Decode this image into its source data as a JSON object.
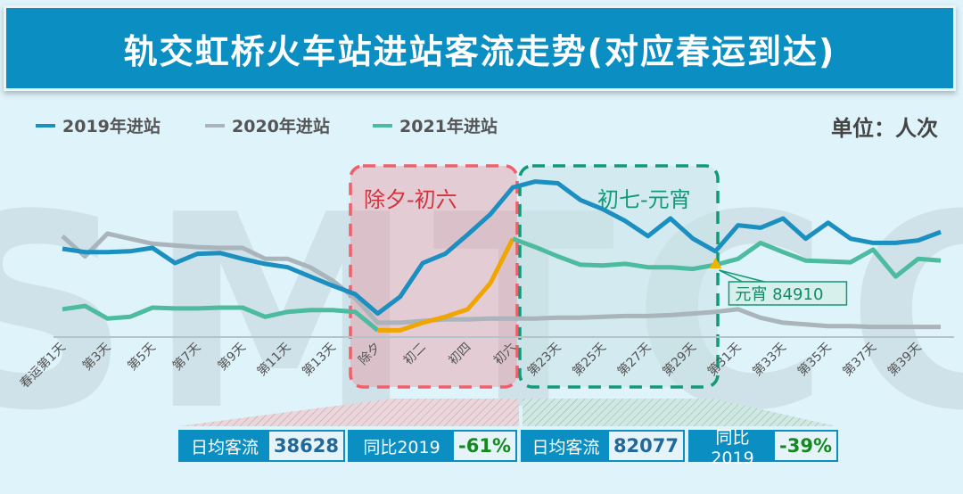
{
  "title": "轨交虹桥火车站进站客流走势(对应春运到达)",
  "unit": "单位：人次",
  "watermark": "SMTCC",
  "chart_data": {
    "type": "line",
    "title": "轨交虹桥火车站进站客流走势(对应春运到达)",
    "xlabel": "",
    "ylabel": "人次",
    "days": 40,
    "x_tick_labels": [
      "春运第1天",
      "第3天",
      "第5天",
      "第7天",
      "第9天",
      "第11天",
      "第13天",
      "除夕",
      "初二",
      "初四",
      "初六",
      "第23天",
      "第25天",
      "第27天",
      "第29天",
      "第31天",
      "第33天",
      "第35天",
      "第37天",
      "第39天"
    ],
    "ylim": [
      0,
      190000
    ],
    "legend_position": "top-left",
    "grid": false,
    "series": [
      {
        "name": "2019年进站",
        "color": "#1a8fc0",
        "values": [
          104000,
          100000,
          100000,
          101000,
          105000,
          87000,
          98000,
          99000,
          92000,
          86000,
          82000,
          71000,
          60000,
          50000,
          27000,
          47000,
          87000,
          98000,
          121000,
          145000,
          177000,
          184000,
          182000,
          162000,
          151000,
          137000,
          119000,
          140000,
          116000,
          101000,
          132000,
          129000,
          140000,
          116000,
          135000,
          116000,
          111000,
          111000,
          114000,
          124000
        ]
      },
      {
        "name": "2020年进站",
        "color": "#a9b4bb",
        "values": [
          119000,
          95000,
          122000,
          116000,
          110000,
          108000,
          106000,
          105000,
          105000,
          92000,
          92000,
          82000,
          66000,
          45000,
          16000,
          16000,
          18000,
          20000,
          20000,
          21000,
          21000,
          21000,
          22000,
          22000,
          23000,
          24000,
          24000,
          25000,
          27000,
          29000,
          32000,
          22000,
          16000,
          14000,
          12000,
          12000,
          11000,
          11000,
          11000,
          11000
        ]
      },
      {
        "name": "2021年进站",
        "color": "#4cbb9f",
        "highlight_color": "#f0a500",
        "values": [
          32000,
          36000,
          21000,
          23000,
          34000,
          33000,
          33000,
          34000,
          34000,
          23000,
          29000,
          31000,
          31000,
          29000,
          7000,
          7000,
          16000,
          23000,
          32000,
          63000,
          116000,
          106000,
          95000,
          85000,
          84000,
          86000,
          82000,
          82000,
          80000,
          84910,
          92000,
          111000,
          100000,
          90000,
          89000,
          88000,
          103000,
          71000,
          92000,
          90000
        ]
      }
    ],
    "regions": [
      {
        "label": "除夕-初六",
        "color": "#f0606a",
        "start_day": 15,
        "end_day": 21
      },
      {
        "label": "初七-元宵",
        "color": "#129a78",
        "start_day": 22,
        "end_day": 30
      }
    ],
    "annotation": {
      "text": "元宵 84910",
      "day": 30,
      "series": "2021年进站"
    }
  },
  "summary": [
    {
      "label": "日均客流",
      "value": "38628",
      "kind": "num"
    },
    {
      "label": "同比2019",
      "value": "-61%",
      "kind": "pct"
    },
    {
      "label": "日均客流",
      "value": "82077",
      "kind": "num"
    },
    {
      "label": "同比2019",
      "value": "-39%",
      "kind": "pct"
    }
  ]
}
